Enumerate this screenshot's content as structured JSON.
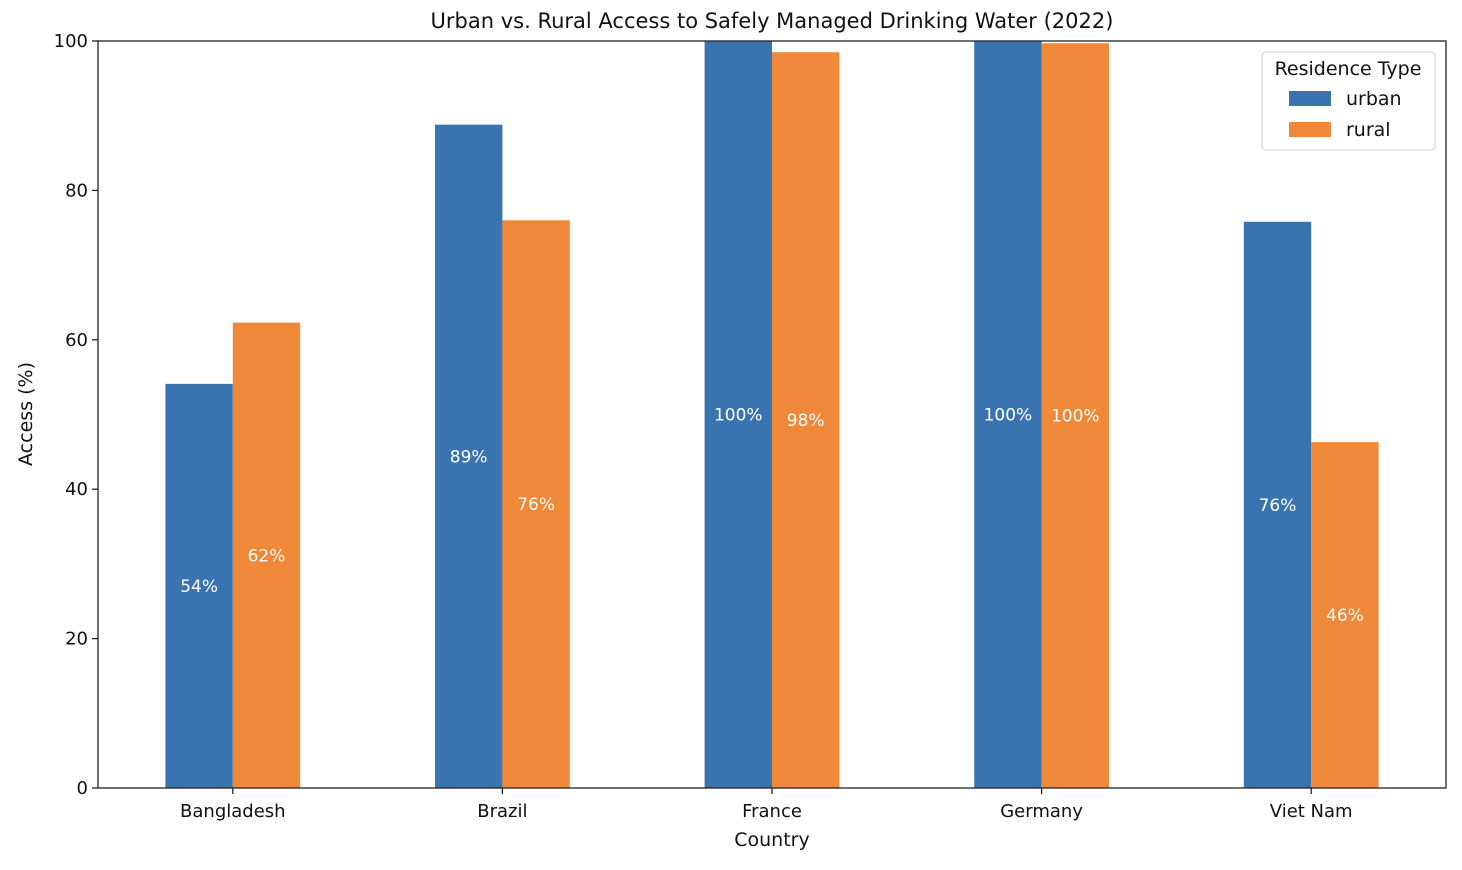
{
  "chart_data": {
    "type": "bar",
    "title": "Urban vs. Rural Access to Safely Managed Drinking Water (2022)",
    "xlabel": "Country",
    "ylabel": "Access (%)",
    "categories": [
      "Bangladesh",
      "Brazil",
      "France",
      "Germany",
      "Viet Nam"
    ],
    "ylim": [
      0,
      100
    ],
    "yticks": [
      0,
      20,
      40,
      60,
      80,
      100
    ],
    "legend": {
      "title": "Residence Type",
      "placement": "top-right"
    },
    "grid": false,
    "series": [
      {
        "name": "urban",
        "color": "#3a74b0",
        "values": [
          54.1,
          88.8,
          100,
          100,
          75.8
        ],
        "labels": [
          "54%",
          "89%",
          "100%",
          "100%",
          "76%"
        ]
      },
      {
        "name": "rural",
        "color": "#ef8838",
        "values": [
          62.3,
          76.0,
          98.5,
          99.7,
          46.3
        ],
        "labels": [
          "62%",
          "76%",
          "98%",
          "100%",
          "46%"
        ]
      }
    ]
  }
}
